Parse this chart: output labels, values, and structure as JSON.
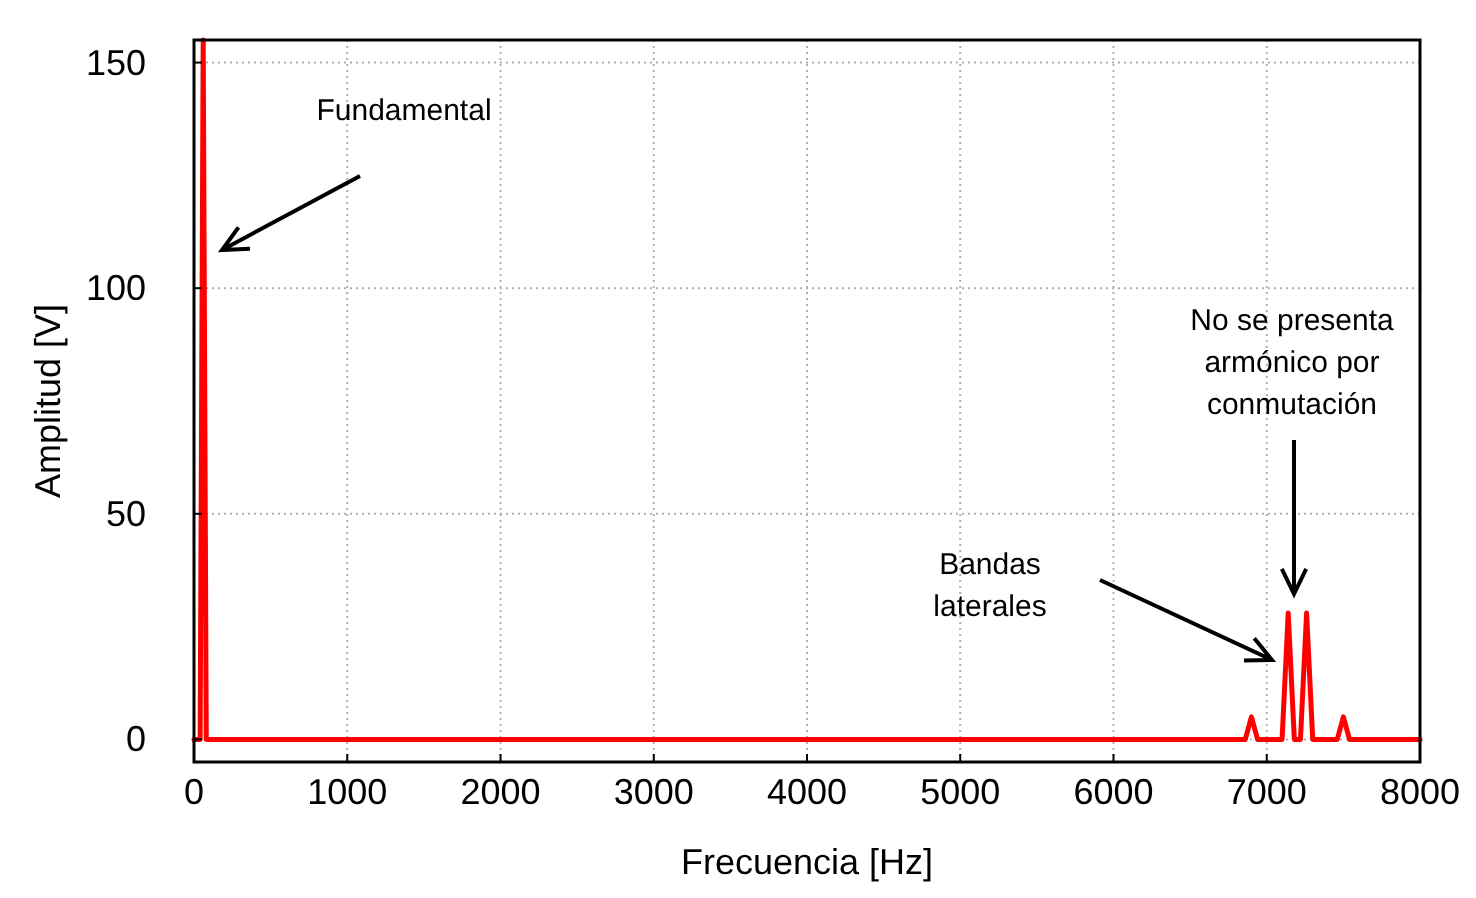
{
  "chart_data": {
    "type": "line",
    "xlabel": "Frecuencia [Hz]",
    "ylabel": "Amplitud [V]",
    "x": [
      0,
      40,
      60,
      80,
      120,
      6860,
      6900,
      6940,
      7100,
      7140,
      7180,
      7220,
      7260,
      7300,
      7460,
      7500,
      7540,
      8000
    ],
    "series": [
      {
        "color": "#ff0000",
        "values": [
          0,
          0,
          155,
          0,
          0,
          0,
          5,
          0,
          0,
          28,
          0,
          0,
          28,
          0,
          0,
          5,
          0,
          0
        ]
      }
    ],
    "xlim": [
      0,
      8000
    ],
    "xticks": [
      0,
      1000,
      2000,
      3000,
      4000,
      5000,
      6000,
      7000,
      8000
    ],
    "ylim": [
      -5,
      155
    ],
    "yticks": [
      0,
      50,
      100,
      150
    ],
    "grid": true,
    "marker": "none",
    "line_style": "solid",
    "annotations": [
      "Fundamental",
      "Bandas\nlaterales",
      "No se presenta\narmónico por\nconmutación"
    ]
  }
}
